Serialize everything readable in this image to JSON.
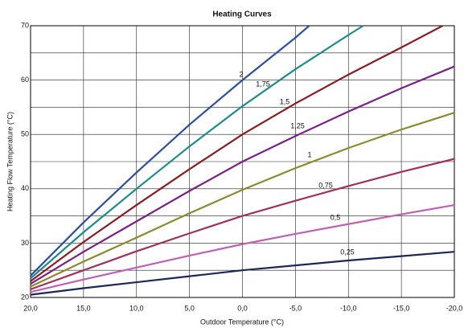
{
  "chart_data": {
    "type": "line",
    "title": "Heating Curves",
    "x_label": "Outdoor Temperature (°C)",
    "y_label": "Heating Flow Temperature (°C)",
    "xlim": [
      20,
      -20
    ],
    "ylim": [
      20,
      70
    ],
    "xticks": [
      {
        "value": 20,
        "label": "20,0"
      },
      {
        "value": 15,
        "label": "15,0"
      },
      {
        "value": 10,
        "label": "10,0"
      },
      {
        "value": 5,
        "label": "5,0"
      },
      {
        "value": 0,
        "label": "0,0"
      },
      {
        "value": -5,
        "label": "-5,0"
      },
      {
        "value": -10,
        "label": "-10,0"
      },
      {
        "value": -15,
        "label": "-15,0"
      },
      {
        "value": -20,
        "label": "-20,0"
      }
    ],
    "yticks": [
      20,
      30,
      40,
      50,
      60,
      70
    ],
    "minor_yticks": [
      25,
      35,
      45,
      55,
      65
    ],
    "grid": true,
    "series": [
      {
        "name": "2",
        "color": "#2c4f9e",
        "x": [
          20,
          15,
          10,
          5,
          0,
          -5,
          -6.3
        ],
        "values": [
          24,
          33.8,
          43,
          51.8,
          60,
          67.8,
          70
        ]
      },
      {
        "name": "1,75",
        "color": "#1b8b8b",
        "x": [
          20,
          15,
          10,
          5,
          0,
          -5,
          -10,
          -11.4
        ],
        "values": [
          23.5,
          32,
          40,
          47.8,
          55.2,
          62,
          68.3,
          70
        ]
      },
      {
        "name": "1,5",
        "color": "#8a1c22",
        "x": [
          20,
          15,
          10,
          5,
          0,
          -5,
          -10,
          -15,
          -18.9
        ],
        "values": [
          23,
          30.2,
          37,
          43.6,
          50,
          55.7,
          61,
          66,
          70
        ]
      },
      {
        "name": "1,25",
        "color": "#7a2088",
        "x": [
          20,
          15,
          10,
          5,
          0,
          -5,
          -10,
          -15,
          -20
        ],
        "values": [
          22.5,
          28.4,
          34,
          39.6,
          45,
          49.7,
          54.2,
          58.5,
          62.5
        ]
      },
      {
        "name": "1",
        "color": "#8b8b2c",
        "x": [
          20,
          15,
          10,
          5,
          0,
          -5,
          -10,
          -15,
          -20
        ],
        "values": [
          22,
          26.6,
          31,
          35.5,
          39.8,
          43.8,
          47.5,
          50.9,
          54
        ]
      },
      {
        "name": "0,75",
        "color": "#a2305c",
        "x": [
          20,
          15,
          10,
          5,
          0,
          -5,
          -10,
          -15,
          -20
        ],
        "values": [
          21.5,
          25,
          28.5,
          31.8,
          35,
          37.8,
          40.5,
          43.1,
          45.5
        ]
      },
      {
        "name": "0,5",
        "color": "#c060b4",
        "x": [
          20,
          15,
          10,
          5,
          0,
          -5,
          -10,
          -15,
          -20
        ],
        "values": [
          21,
          23.3,
          25.5,
          27.7,
          29.8,
          31.7,
          33.5,
          35.3,
          37
        ]
      },
      {
        "name": "0,25",
        "color": "#1c2858",
        "x": [
          20,
          15,
          10,
          5,
          0,
          -5,
          -10,
          -15,
          -20
        ],
        "values": [
          20.5,
          21.7,
          22.8,
          23.9,
          25,
          25.9,
          26.8,
          27.6,
          28.4
        ]
      }
    ]
  }
}
